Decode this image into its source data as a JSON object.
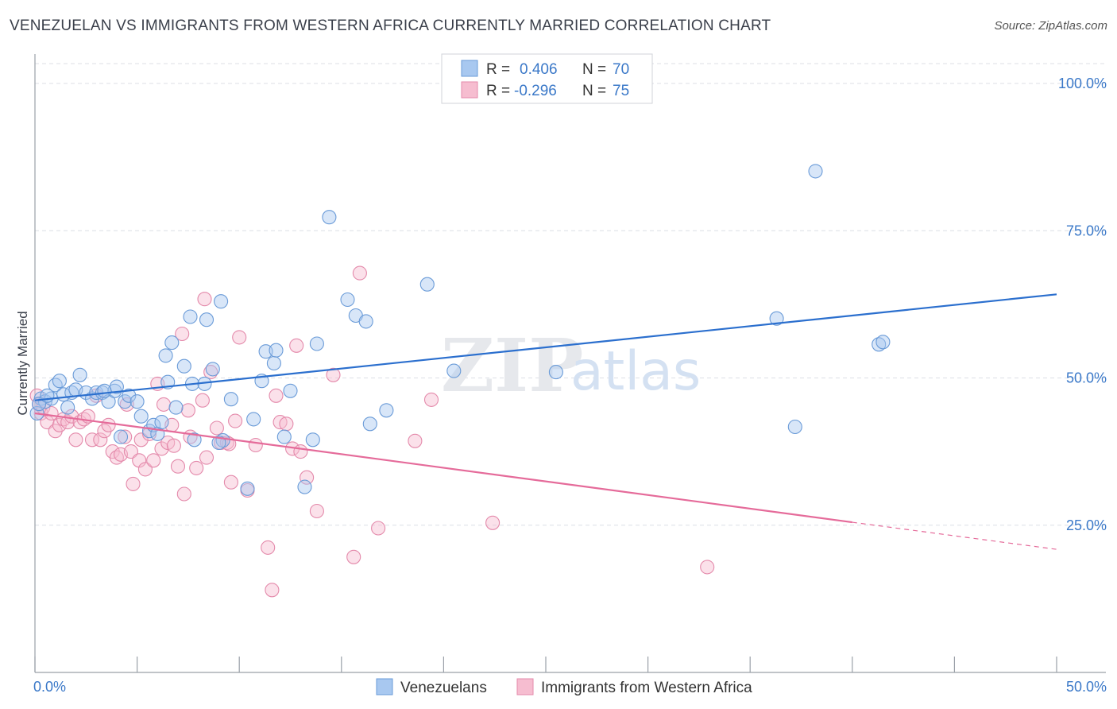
{
  "title": "VENEZUELAN VS IMMIGRANTS FROM WESTERN AFRICA CURRENTLY MARRIED CORRELATION CHART",
  "source": "Source: ZipAtlas.com",
  "watermark": {
    "zip": "ZIP",
    "atlas": "atlas"
  },
  "stats": [
    {
      "r_label": "R =",
      "r_value": "0.406",
      "n_label": "N =",
      "n_value": "70"
    },
    {
      "r_label": "R =",
      "r_value": "-0.296",
      "n_label": "N =",
      "n_value": "75"
    }
  ],
  "colors": {
    "blue_fill": "#a8c8f0",
    "blue_stroke": "#6a9bd8",
    "blue_line": "#2b6fce",
    "pink_fill": "#f6bdd0",
    "pink_stroke": "#e48aab",
    "pink_line": "#e56b9a",
    "grid": "#dcdfe6",
    "value_text": "#3a78c8"
  },
  "chart_data": {
    "type": "scatter",
    "title": "VENEZUELAN VS IMMIGRANTS FROM WESTERN AFRICA CURRENTLY MARRIED CORRELATION CHART",
    "xlabel": "",
    "ylabel": "Currently Married",
    "xlim": [
      0,
      50
    ],
    "ylim": [
      0,
      105
    ],
    "x_tick_labels": [
      {
        "value": 0,
        "label": "0.0%"
      },
      {
        "value": 50,
        "label": "50.0%"
      }
    ],
    "y_tick_labels": [
      {
        "value": 25,
        "label": "25.0%"
      },
      {
        "value": 50,
        "label": "50.0%"
      },
      {
        "value": 75,
        "label": "75.0%"
      },
      {
        "value": 100,
        "label": "100.0%"
      }
    ],
    "grid": true,
    "legend_position": "bottom-center",
    "series": [
      {
        "name": "Venezuelans",
        "color": "#a8c8f0",
        "trend": {
          "x": [
            0,
            50
          ],
          "y": [
            46.2,
            64.2
          ]
        },
        "points": [
          [
            0.1,
            44.0
          ],
          [
            0.3,
            46.5
          ],
          [
            0.5,
            46.0
          ],
          [
            0.8,
            46.5
          ],
          [
            1.0,
            48.8
          ],
          [
            1.2,
            49.5
          ],
          [
            1.4,
            47.2
          ],
          [
            1.6,
            45.0
          ],
          [
            1.8,
            47.5
          ],
          [
            2.0,
            48.0
          ],
          [
            2.2,
            50.5
          ],
          [
            2.5,
            47.5
          ],
          [
            2.8,
            46.5
          ],
          [
            3.0,
            47.5
          ],
          [
            3.3,
            47.5
          ],
          [
            3.6,
            46.0
          ],
          [
            3.9,
            47.8
          ],
          [
            4.0,
            48.5
          ],
          [
            4.2,
            40.0
          ],
          [
            4.4,
            46.0
          ],
          [
            4.6,
            47.0
          ],
          [
            5.0,
            46.0
          ],
          [
            5.2,
            43.5
          ],
          [
            5.6,
            41.0
          ],
          [
            5.8,
            42.0
          ],
          [
            6.0,
            40.5
          ],
          [
            6.2,
            42.5
          ],
          [
            6.4,
            53.8
          ],
          [
            6.5,
            49.3
          ],
          [
            6.7,
            56.0
          ],
          [
            6.9,
            45.0
          ],
          [
            7.3,
            52.0
          ],
          [
            7.6,
            60.4
          ],
          [
            7.7,
            49.0
          ],
          [
            7.8,
            39.5
          ],
          [
            8.3,
            49.0
          ],
          [
            8.4,
            59.9
          ],
          [
            8.7,
            51.5
          ],
          [
            9.1,
            63.0
          ],
          [
            9.2,
            39.4
          ],
          [
            9.6,
            46.4
          ],
          [
            10.4,
            31.2
          ],
          [
            10.7,
            43.0
          ],
          [
            11.1,
            49.5
          ],
          [
            11.3,
            54.5
          ],
          [
            11.7,
            52.5
          ],
          [
            11.8,
            54.7
          ],
          [
            12.2,
            40.0
          ],
          [
            12.5,
            47.8
          ],
          [
            13.6,
            39.5
          ],
          [
            13.8,
            55.8
          ],
          [
            14.4,
            77.3
          ],
          [
            15.3,
            63.3
          ],
          [
            15.7,
            60.6
          ],
          [
            16.2,
            59.6
          ],
          [
            16.4,
            42.2
          ],
          [
            17.2,
            44.5
          ],
          [
            19.2,
            65.9
          ],
          [
            20.5,
            51.2
          ],
          [
            25.5,
            51.0
          ],
          [
            36.3,
            60.1
          ],
          [
            37.2,
            41.7
          ],
          [
            38.2,
            85.1
          ],
          [
            41.3,
            55.7
          ],
          [
            41.5,
            56.1
          ],
          [
            0.2,
            45.6
          ],
          [
            3.4,
            47.8
          ],
          [
            0.6,
            47.0
          ],
          [
            9.0,
            39.0
          ],
          [
            13.2,
            31.5
          ]
        ]
      },
      {
        "name": "Immigrants from Western Africa",
        "color": "#f6bdd0",
        "trend": {
          "x": [
            0,
            40
          ],
          "y": [
            44.0,
            25.5
          ]
        },
        "trend_dashed": {
          "x": [
            40,
            50
          ],
          "y": [
            25.5,
            20.9
          ]
        },
        "points": [
          [
            0.1,
            47.0
          ],
          [
            0.2,
            45.5
          ],
          [
            0.3,
            44.0
          ],
          [
            0.4,
            45.0
          ],
          [
            0.6,
            42.5
          ],
          [
            0.8,
            44.0
          ],
          [
            1.0,
            41.0
          ],
          [
            1.2,
            42.0
          ],
          [
            1.4,
            43.0
          ],
          [
            1.6,
            42.5
          ],
          [
            1.8,
            43.5
          ],
          [
            2.0,
            39.5
          ],
          [
            2.2,
            42.5
          ],
          [
            2.4,
            43.0
          ],
          [
            2.6,
            43.5
          ],
          [
            2.8,
            39.5
          ],
          [
            3.0,
            47.0
          ],
          [
            3.2,
            39.5
          ],
          [
            3.4,
            41.0
          ],
          [
            3.6,
            42.0
          ],
          [
            3.8,
            37.5
          ],
          [
            4.0,
            36.5
          ],
          [
            4.2,
            37.0
          ],
          [
            4.4,
            40.0
          ],
          [
            4.5,
            45.5
          ],
          [
            4.7,
            37.5
          ],
          [
            4.8,
            32.0
          ],
          [
            5.1,
            36.0
          ],
          [
            5.2,
            39.5
          ],
          [
            5.4,
            34.5
          ],
          [
            5.6,
            40.5
          ],
          [
            5.8,
            36.0
          ],
          [
            6.0,
            49.0
          ],
          [
            6.2,
            38.0
          ],
          [
            6.3,
            45.5
          ],
          [
            6.5,
            39.0
          ],
          [
            6.7,
            42.0
          ],
          [
            6.8,
            38.5
          ],
          [
            7.0,
            35.0
          ],
          [
            7.2,
            57.5
          ],
          [
            7.3,
            30.3
          ],
          [
            7.5,
            44.5
          ],
          [
            7.6,
            40.0
          ],
          [
            7.9,
            34.7
          ],
          [
            8.2,
            46.2
          ],
          [
            8.3,
            63.4
          ],
          [
            8.4,
            36.5
          ],
          [
            8.6,
            51.0
          ],
          [
            8.9,
            41.5
          ],
          [
            9.1,
            39.0
          ],
          [
            9.4,
            39.0
          ],
          [
            9.6,
            32.3
          ],
          [
            9.8,
            42.7
          ],
          [
            10.0,
            56.9
          ],
          [
            10.4,
            30.9
          ],
          [
            10.8,
            38.6
          ],
          [
            11.4,
            21.2
          ],
          [
            11.6,
            14.0
          ],
          [
            11.8,
            47.0
          ],
          [
            12.0,
            42.5
          ],
          [
            12.6,
            38.0
          ],
          [
            12.8,
            55.5
          ],
          [
            13.0,
            37.5
          ],
          [
            13.3,
            33.1
          ],
          [
            13.8,
            27.4
          ],
          [
            14.6,
            50.5
          ],
          [
            15.6,
            19.6
          ],
          [
            15.9,
            67.8
          ],
          [
            16.8,
            24.5
          ],
          [
            18.6,
            39.3
          ],
          [
            19.4,
            46.3
          ],
          [
            22.4,
            25.4
          ],
          [
            32.9,
            17.9
          ],
          [
            12.3,
            42.2
          ],
          [
            9.5,
            38.8
          ]
        ]
      }
    ]
  }
}
